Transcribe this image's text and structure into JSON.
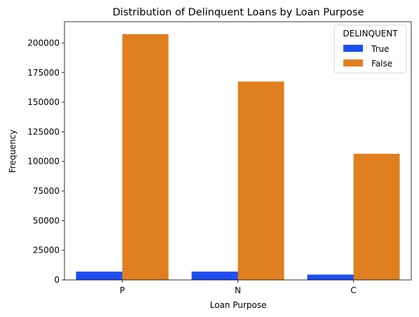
{
  "chart_data": {
    "type": "bar",
    "title": "Distribution of Delinquent Loans by Loan Purpose",
    "xlabel": "Loan Purpose",
    "ylabel": "Frequency",
    "categories": [
      "P",
      "N",
      "C"
    ],
    "ylim": [
      0,
      218000
    ],
    "yticks": [
      0,
      25000,
      50000,
      75000,
      100000,
      125000,
      150000,
      175000,
      200000
    ],
    "legend": {
      "title": "DELINQUENT",
      "placement": "top-right"
    },
    "series": [
      {
        "name": "True",
        "color": "#1f4ff0",
        "values": [
          7000,
          7000,
          4500
        ]
      },
      {
        "name": "False",
        "color": "#e07f1f",
        "values": [
          207500,
          167500,
          106500
        ]
      }
    ]
  }
}
